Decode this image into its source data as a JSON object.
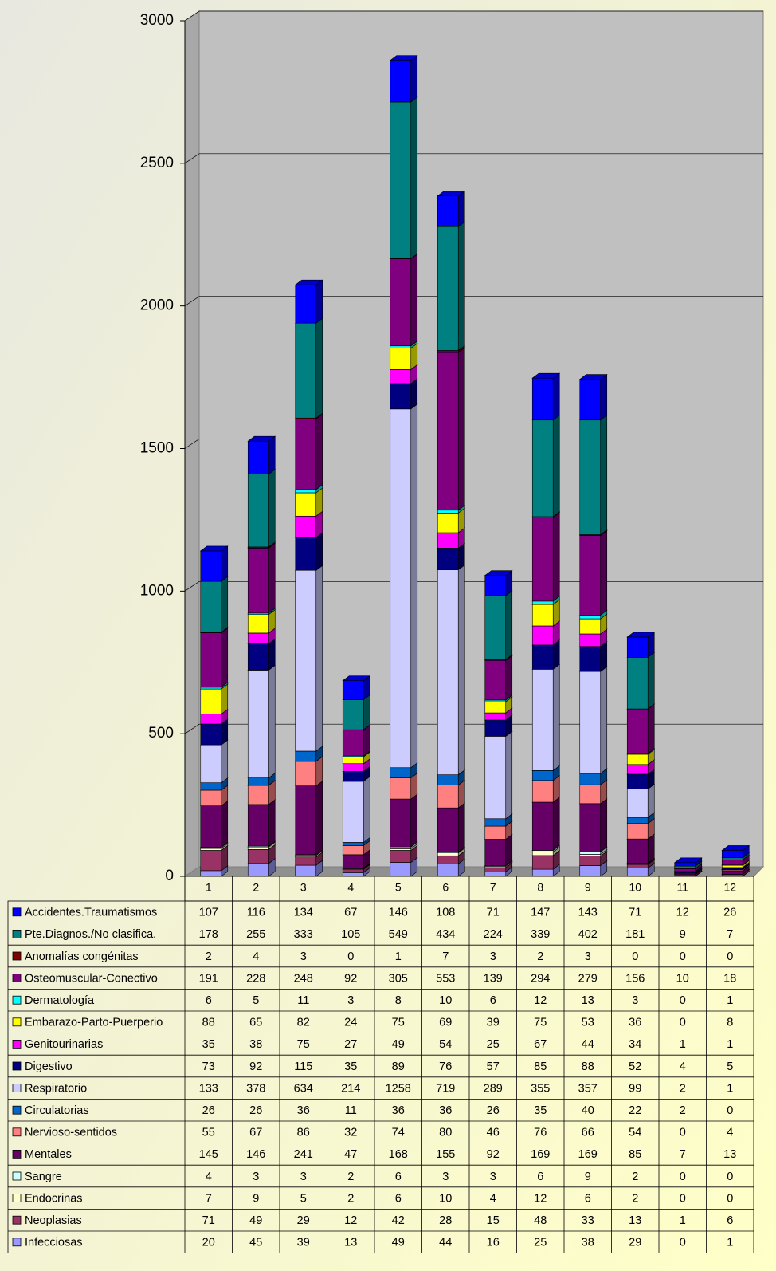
{
  "chart_data": {
    "type": "bar",
    "stacked": true,
    "categories": [
      "1",
      "2",
      "3",
      "4",
      "5",
      "6",
      "7",
      "8",
      "9",
      "10",
      "11",
      "12"
    ],
    "ylim": [
      0,
      3000
    ],
    "yticks": [
      0,
      500,
      1000,
      1500,
      2000,
      2500,
      3000
    ],
    "grid": true,
    "series": [
      {
        "name": "Infecciosas",
        "color": "#9999ff",
        "values": [
          20,
          45,
          39,
          13,
          49,
          44,
          16,
          25,
          38,
          29,
          0,
          1
        ]
      },
      {
        "name": "Neoplasias",
        "color": "#993366",
        "values": [
          71,
          49,
          29,
          12,
          42,
          28,
          15,
          48,
          33,
          13,
          1,
          6
        ]
      },
      {
        "name": "Endocrinas",
        "color": "#ffffcc",
        "values": [
          7,
          9,
          5,
          2,
          6,
          10,
          4,
          12,
          6,
          2,
          0,
          0
        ]
      },
      {
        "name": "Sangre",
        "color": "#ccffff",
        "values": [
          4,
          3,
          3,
          2,
          6,
          3,
          3,
          6,
          9,
          2,
          0,
          0
        ]
      },
      {
        "name": "Mentales",
        "color": "#660066",
        "values": [
          145,
          146,
          241,
          47,
          168,
          155,
          92,
          169,
          169,
          85,
          7,
          13
        ]
      },
      {
        "name": "Nervioso-sentidos",
        "color": "#ff8080",
        "values": [
          55,
          67,
          86,
          32,
          74,
          80,
          46,
          76,
          66,
          54,
          0,
          4
        ]
      },
      {
        "name": "Circulatorias",
        "color": "#0066cc",
        "values": [
          26,
          26,
          36,
          11,
          36,
          36,
          26,
          35,
          40,
          22,
          2,
          0
        ]
      },
      {
        "name": "Respiratorio",
        "color": "#ccccff",
        "values": [
          133,
          378,
          634,
          214,
          1258,
          719,
          289,
          355,
          357,
          99,
          2,
          1
        ]
      },
      {
        "name": "Digestivo",
        "color": "#000080",
        "values": [
          73,
          92,
          115,
          35,
          89,
          76,
          57,
          85,
          88,
          52,
          4,
          5
        ]
      },
      {
        "name": "Genitourinarias",
        "color": "#ff00ff",
        "values": [
          35,
          38,
          75,
          27,
          49,
          54,
          25,
          67,
          44,
          34,
          1,
          1
        ]
      },
      {
        "name": "Embarazo-Parto-Puerperio",
        "color": "#ffff00",
        "values": [
          88,
          65,
          82,
          24,
          75,
          69,
          39,
          75,
          53,
          36,
          0,
          8
        ]
      },
      {
        "name": "Dermatología",
        "color": "#00ffff",
        "values": [
          6,
          5,
          11,
          3,
          8,
          10,
          6,
          12,
          13,
          3,
          0,
          1
        ]
      },
      {
        "name": "Osteomuscular-Conectivo",
        "color": "#800080",
        "values": [
          191,
          228,
          248,
          92,
          305,
          553,
          139,
          294,
          279,
          156,
          10,
          18
        ]
      },
      {
        "name": "Anomalías congénitas",
        "color": "#800000",
        "values": [
          2,
          4,
          3,
          0,
          1,
          7,
          3,
          2,
          3,
          0,
          0,
          0
        ]
      },
      {
        "name": "Pte.Diagnos./No clasifica.",
        "color": "#008080",
        "values": [
          178,
          255,
          333,
          105,
          549,
          434,
          224,
          339,
          402,
          181,
          9,
          7
        ]
      },
      {
        "name": "Accidentes.Traumatismos",
        "color": "#0000ff",
        "values": [
          107,
          116,
          134,
          67,
          146,
          108,
          71,
          147,
          143,
          71,
          12,
          26
        ]
      }
    ]
  }
}
